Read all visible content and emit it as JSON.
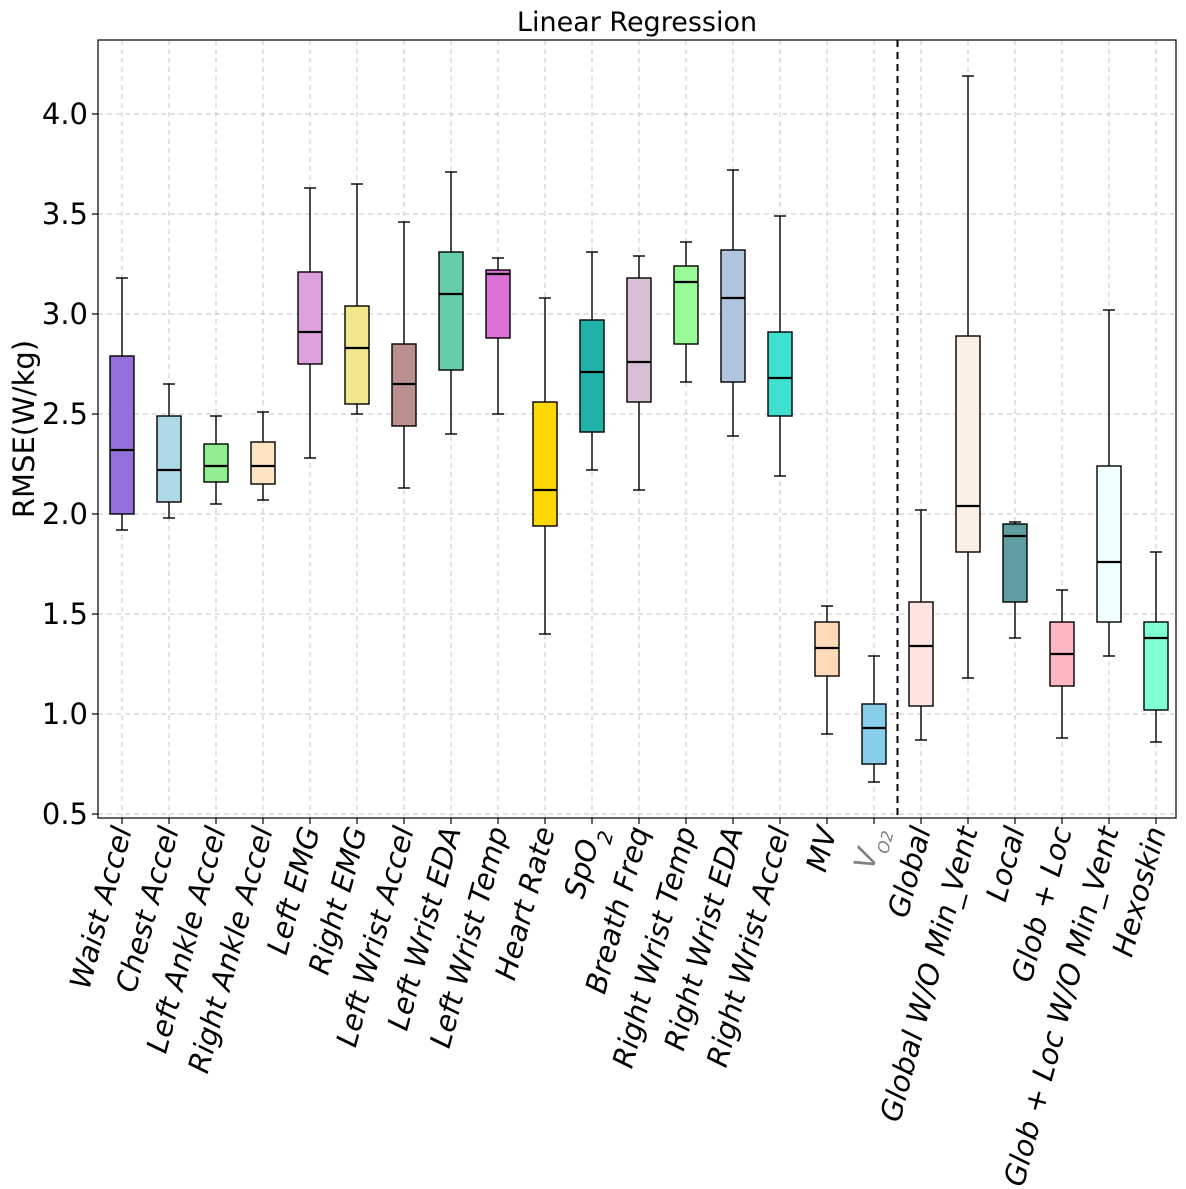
{
  "chart_data": {
    "type": "box",
    "title": "Linear Regression",
    "xlabel": "",
    "ylabel": "RMSE(W/kg)",
    "ylim": [
      0.48,
      4.37
    ],
    "yticks": [
      "0.5",
      "1.0",
      "1.5",
      "2.0",
      "2.5",
      "3.0",
      "3.5",
      "4.0"
    ],
    "grid": true,
    "separator_after_index": 16,
    "categories": [
      "Waist Accel",
      "Chest Accel",
      "Left Ankle Accel",
      "Right Ankle Accel",
      "Left EMG",
      "Right EMG",
      "Left Wrist Accel",
      "Left Wrist EDA",
      "Left Wrist Temp",
      "Heart Rate",
      "SpO2",
      "Breath Freq",
      "Right Wrist Temp",
      "Right Wrist EDA",
      "Right Wrist Accel",
      "MV",
      "VO2",
      "Global",
      "Global W/O Min_Vent",
      "Local",
      "Glob + Loc",
      "Glob + Loc W/O Min_Vent",
      "Hexoskin"
    ],
    "boxes": [
      {
        "name": "Waist Accel",
        "whislo": 1.92,
        "q1": 2.0,
        "med": 2.32,
        "q3": 2.79,
        "whishi": 3.18,
        "color": "#9370db"
      },
      {
        "name": "Chest Accel",
        "whislo": 1.98,
        "q1": 2.06,
        "med": 2.22,
        "q3": 2.49,
        "whishi": 2.65,
        "color": "#add8e6"
      },
      {
        "name": "Left Ankle Accel",
        "whislo": 2.05,
        "q1": 2.16,
        "med": 2.24,
        "q3": 2.35,
        "whishi": 2.49,
        "color": "#90ee90"
      },
      {
        "name": "Right Ankle Accel",
        "whislo": 2.07,
        "q1": 2.15,
        "med": 2.24,
        "q3": 2.36,
        "whishi": 2.51,
        "color": "#ffe4c4"
      },
      {
        "name": "Left EMG",
        "whislo": 2.28,
        "q1": 2.75,
        "med": 2.91,
        "q3": 3.21,
        "whishi": 3.63,
        "color": "#dda0dd"
      },
      {
        "name": "Right EMG",
        "whislo": 2.5,
        "q1": 2.55,
        "med": 2.83,
        "q3": 3.04,
        "whishi": 3.65,
        "color": "#f0e68c"
      },
      {
        "name": "Left Wrist Accel",
        "whislo": 2.13,
        "q1": 2.44,
        "med": 2.65,
        "q3": 2.85,
        "whishi": 3.46,
        "color": "#bc8f8f"
      },
      {
        "name": "Left Wrist EDA",
        "whislo": 2.4,
        "q1": 2.72,
        "med": 3.1,
        "q3": 3.31,
        "whishi": 3.71,
        "color": "#66cdaa"
      },
      {
        "name": "Left Wrist Temp",
        "whislo": 2.5,
        "q1": 2.88,
        "med": 3.2,
        "q3": 3.22,
        "whishi": 3.28,
        "color": "#da70d6"
      },
      {
        "name": "Heart Rate",
        "whislo": 1.4,
        "q1": 1.94,
        "med": 2.12,
        "q3": 2.56,
        "whishi": 3.08,
        "color": "#ffd700"
      },
      {
        "name": "SpO2",
        "whislo": 2.22,
        "q1": 2.41,
        "med": 2.71,
        "q3": 2.97,
        "whishi": 3.31,
        "color": "#20b2aa"
      },
      {
        "name": "Breath Freq",
        "whislo": 2.12,
        "q1": 2.56,
        "med": 2.76,
        "q3": 3.18,
        "whishi": 3.29,
        "color": "#d8bfd8"
      },
      {
        "name": "Right Wrist Temp",
        "whislo": 2.66,
        "q1": 2.85,
        "med": 3.16,
        "q3": 3.24,
        "whishi": 3.36,
        "color": "#98fb98"
      },
      {
        "name": "Right Wrist EDA",
        "whislo": 2.39,
        "q1": 2.66,
        "med": 3.08,
        "q3": 3.32,
        "whishi": 3.72,
        "color": "#b0c4de"
      },
      {
        "name": "Right Wrist Accel",
        "whislo": 2.19,
        "q1": 2.49,
        "med": 2.68,
        "q3": 2.91,
        "whishi": 3.49,
        "color": "#40e0d0"
      },
      {
        "name": "MV",
        "whislo": 0.9,
        "q1": 1.19,
        "med": 1.33,
        "q3": 1.46,
        "whishi": 1.54,
        "color": "#ffdab9"
      },
      {
        "name": "VO2",
        "whislo": 0.66,
        "q1": 0.75,
        "med": 0.93,
        "q3": 1.05,
        "whishi": 1.29,
        "color": "#87ceeb"
      },
      {
        "name": "Global",
        "whislo": 0.87,
        "q1": 1.04,
        "med": 1.34,
        "q3": 1.56,
        "whishi": 2.02,
        "color": "#ffe4e1"
      },
      {
        "name": "Global W/O Min_Vent",
        "whislo": 1.18,
        "q1": 1.81,
        "med": 2.04,
        "q3": 2.89,
        "whishi": 4.19,
        "color": "#faf0e6"
      },
      {
        "name": "Local",
        "whislo": 1.38,
        "q1": 1.56,
        "med": 1.89,
        "q3": 1.95,
        "whishi": 1.96,
        "color": "#5f9ea0"
      },
      {
        "name": "Glob + Loc",
        "whislo": 0.88,
        "q1": 1.14,
        "med": 1.3,
        "q3": 1.46,
        "whishi": 1.62,
        "color": "#ffb6c1"
      },
      {
        "name": "Glob + Loc W/O Min_Vent",
        "whislo": 1.29,
        "q1": 1.46,
        "med": 1.76,
        "q3": 2.24,
        "whishi": 3.02,
        "color": "#f0ffff"
      },
      {
        "name": "Hexoskin",
        "whislo": 0.86,
        "q1": 1.02,
        "med": 1.38,
        "q3": 1.46,
        "whishi": 1.81,
        "color": "#7fffd4"
      }
    ]
  }
}
